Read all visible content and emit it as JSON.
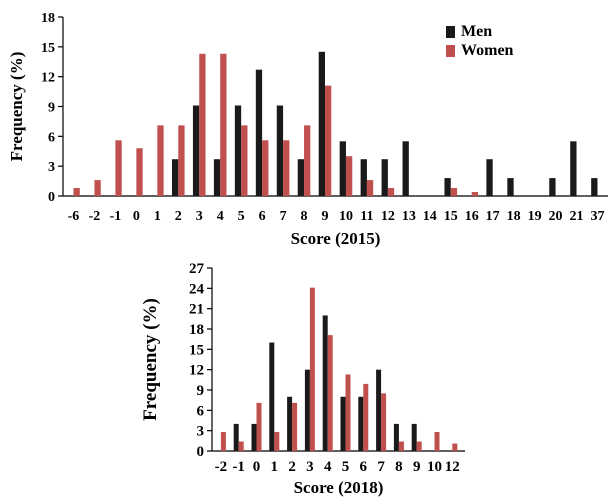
{
  "chart_data": [
    {
      "type": "bar",
      "xlabel": "Score (2015)",
      "ylabel": "Frequency (%)",
      "ylim": [
        0,
        18
      ],
      "yticks": [
        0,
        3,
        6,
        9,
        12,
        15,
        18
      ],
      "categories": [
        "-6",
        "-2",
        "-1",
        "0",
        "1",
        "2",
        "3",
        "4",
        "5",
        "6",
        "7",
        "8",
        "9",
        "10",
        "11",
        "12",
        "13",
        "14",
        "15",
        "16",
        "17",
        "18",
        "19",
        "20",
        "21",
        "37"
      ],
      "series": [
        {
          "name": "Men",
          "color": "#1a1a1a",
          "values": [
            0,
            0,
            0,
            0,
            0,
            3.7,
            9.1,
            3.7,
            9.1,
            12.7,
            9.1,
            3.7,
            14.5,
            5.5,
            3.7,
            3.7,
            5.5,
            0,
            1.8,
            0,
            3.7,
            1.8,
            0,
            1.8,
            5.5,
            1.8
          ]
        },
        {
          "name": "Women",
          "color": "#c0504d",
          "values": [
            0.8,
            1.6,
            5.6,
            4.8,
            7.1,
            7.1,
            14.3,
            14.3,
            7.1,
            5.6,
            5.6,
            7.1,
            11.1,
            4.0,
            1.6,
            0.8,
            0,
            0,
            0.8,
            0.4,
            0,
            0,
            0,
            0,
            0,
            0
          ]
        }
      ],
      "legend": "top-right"
    },
    {
      "type": "bar",
      "xlabel": "Score (2018)",
      "ylabel": "Frequency (%)",
      "ylim": [
        0,
        27
      ],
      "yticks": [
        0,
        3,
        6,
        9,
        12,
        15,
        18,
        21,
        24,
        27
      ],
      "categories": [
        "-2",
        "-1",
        "0",
        "1",
        "2",
        "3",
        "4",
        "5",
        "6",
        "7",
        "8",
        "9",
        "10",
        "12"
      ],
      "series": [
        {
          "name": "Men",
          "color": "#1a1a1a",
          "values": [
            0,
            4,
            4,
            16,
            8,
            12,
            20,
            8,
            8,
            12,
            4,
            4,
            0,
            0
          ]
        },
        {
          "name": "Women",
          "color": "#c0504d",
          "values": [
            2.8,
            1.4,
            7.1,
            2.8,
            7.1,
            24.1,
            17.1,
            11.3,
            9.9,
            8.5,
            1.4,
            1.4,
            2.8,
            1.1
          ]
        }
      ]
    }
  ]
}
